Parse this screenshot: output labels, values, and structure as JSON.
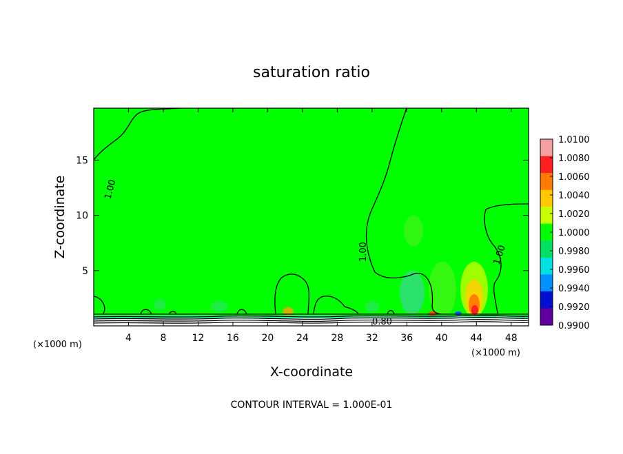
{
  "chart_data": {
    "type": "heatmap",
    "title": "saturation ratio",
    "xlabel": "X-coordinate",
    "ylabel": "Z-coordinate",
    "x_unit": "(×1000 m)",
    "x_ticks": [
      4,
      8,
      12,
      16,
      20,
      24,
      28,
      32,
      36,
      40,
      44,
      48
    ],
    "y_ticks": [
      5,
      10,
      15
    ],
    "xlim": [
      0,
      50
    ],
    "ylim": [
      0,
      19.7
    ],
    "colorbar": {
      "levels": [
        "1.0100",
        "1.0080",
        "1.0060",
        "1.0040",
        "1.0020",
        "1.0000",
        "0.9980",
        "0.9960",
        "0.9940",
        "0.9920",
        "0.9900"
      ],
      "colors": [
        "#f4a0a0",
        "#ff2020",
        "#ff7a00",
        "#ffc800",
        "#c8ff00",
        "#00ff00",
        "#00e060",
        "#00e0e0",
        "#0090ff",
        "#0010d0",
        "#6000a0"
      ]
    },
    "background_color": "#00ff00",
    "contour_labels": [
      "1.00",
      "1.00",
      "1.00",
      "0.80"
    ],
    "footer": "CONTOUR INTERVAL = 1.000E-01"
  }
}
